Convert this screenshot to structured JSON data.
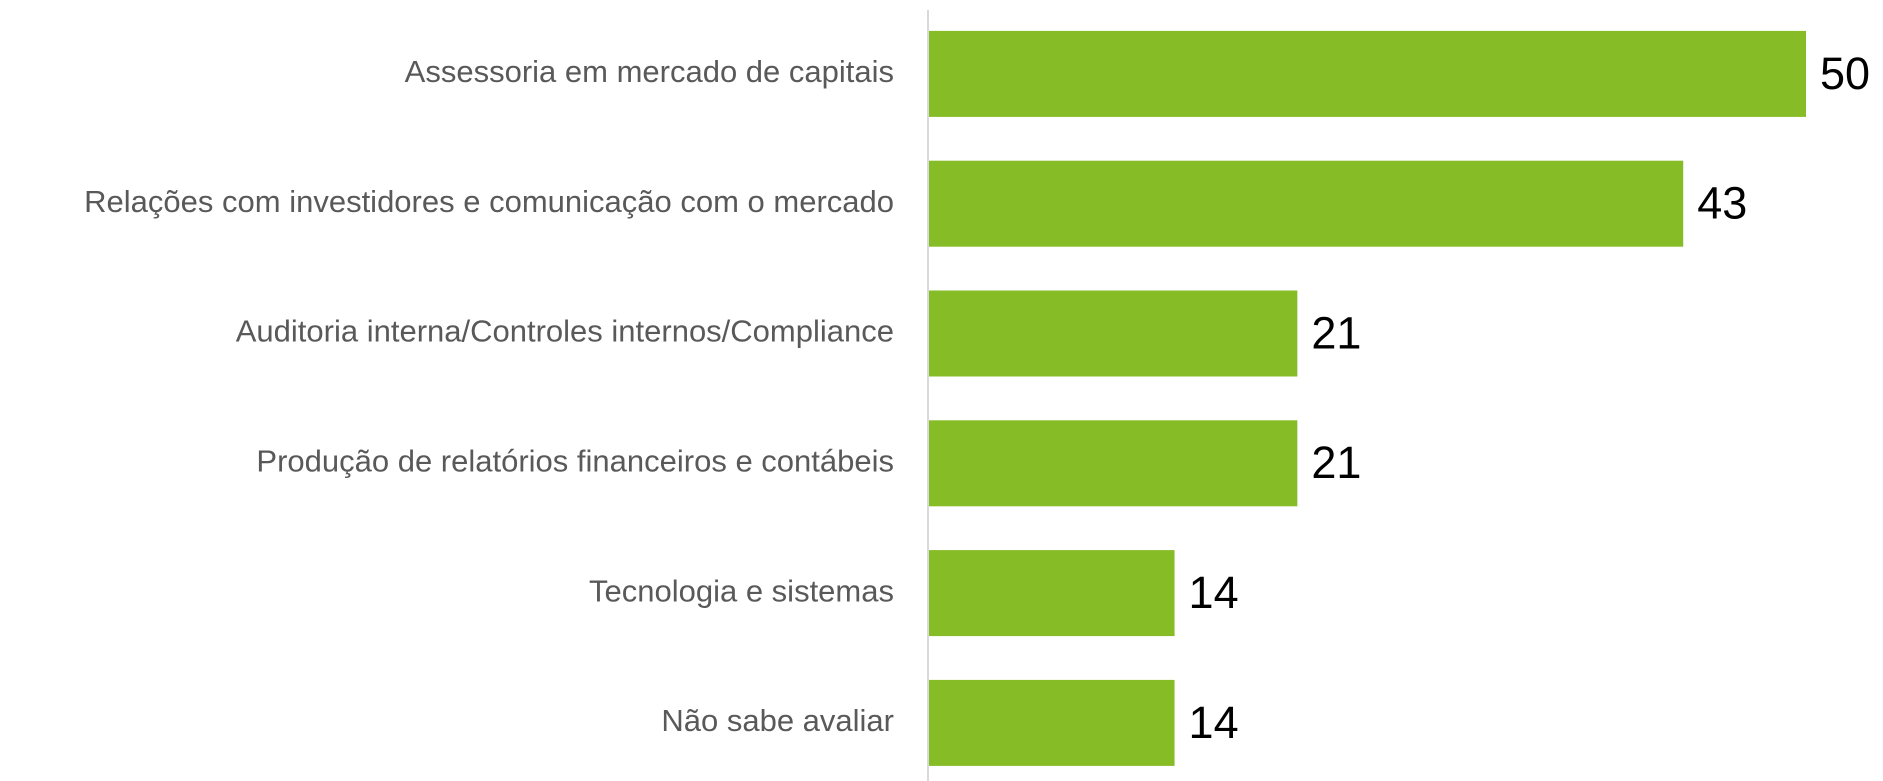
{
  "chart_data": {
    "type": "bar",
    "orientation": "horizontal",
    "categories": [
      "Assessoria em mercado de capitais",
      "Relações com investidores e comunicação com o mercado",
      "Auditoria interna/Controles internos/Compliance",
      "Produção de relatórios financeiros e contábeis",
      "Tecnologia e sistemas",
      "Não sabe avaliar"
    ],
    "values": [
      50,
      43,
      21,
      21,
      14,
      14
    ],
    "color": "#86bc25"
  }
}
